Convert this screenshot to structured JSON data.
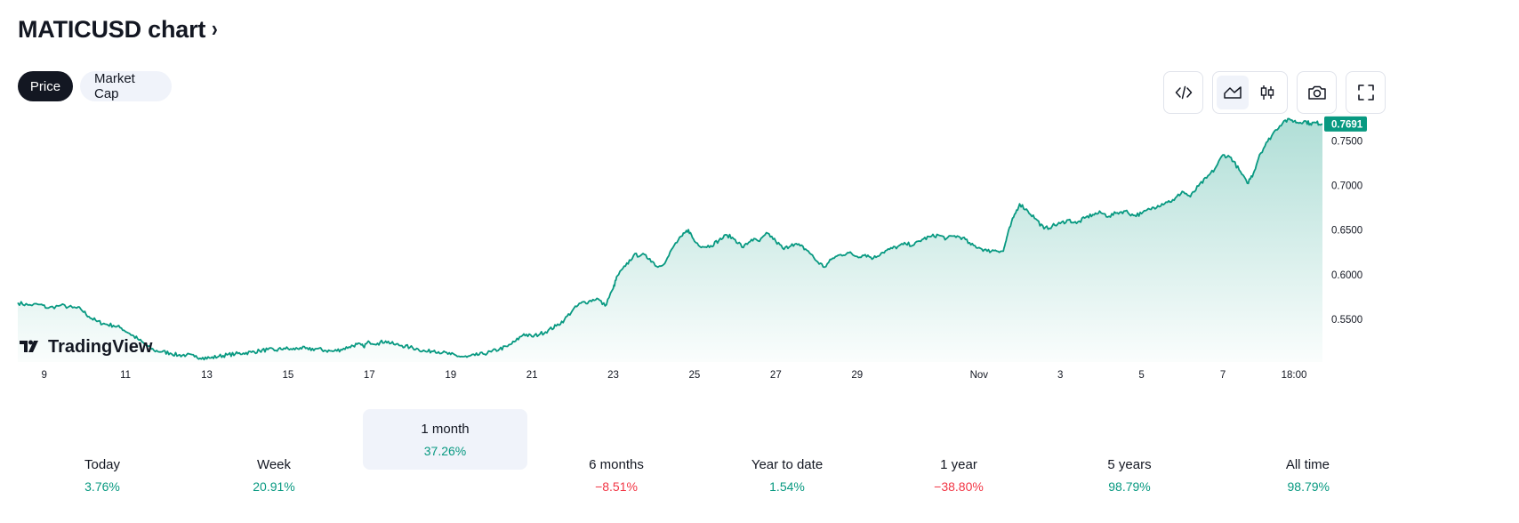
{
  "header": {
    "title": "MATICUSD chart",
    "title_chevron": "›"
  },
  "toggles": {
    "price": "Price",
    "market_cap": "Market Cap"
  },
  "toolbar": {
    "icons": [
      "embed-code-icon",
      "area-chart-icon",
      "candles-icon",
      "camera-icon",
      "fullscreen-icon"
    ],
    "active_style": "area"
  },
  "colors": {
    "line": "#089981",
    "positive": "#089981",
    "negative": "#f23645",
    "dark": "#131722"
  },
  "logo": {
    "text": "TradingView"
  },
  "chart_data": {
    "type": "area",
    "title": "MATICUSD",
    "ylim": [
      0.502,
      0.7785
    ],
    "y_ticks": [
      0.55,
      0.6,
      0.65,
      0.7,
      0.75
    ],
    "y_tick_labels": [
      "0.5500",
      "0.6000",
      "0.6500",
      "0.7000",
      "0.7500"
    ],
    "last_value_label": "0.7691",
    "x_ticks": [
      {
        "day": 9,
        "label": "9"
      },
      {
        "day": 11,
        "label": "11"
      },
      {
        "day": 13,
        "label": "13"
      },
      {
        "day": 15,
        "label": "15"
      },
      {
        "day": 17,
        "label": "17"
      },
      {
        "day": 19,
        "label": "19"
      },
      {
        "day": 21,
        "label": "21"
      },
      {
        "day": 23,
        "label": "23"
      },
      {
        "day": 25,
        "label": "25"
      },
      {
        "day": 27,
        "label": "27"
      },
      {
        "day": 29,
        "label": "29"
      },
      {
        "day": 32,
        "label": "Nov"
      },
      {
        "day": 34,
        "label": "3"
      },
      {
        "day": 36,
        "label": "5"
      },
      {
        "day": 38,
        "label": "7"
      },
      {
        "day": 39.75,
        "label": "18:00"
      }
    ],
    "x_unit": "days since Oct 0 (Nov 1 = 32)",
    "xlim": [
      8.35,
      40.45
    ],
    "points": [
      [
        8.35,
        0.5685
      ],
      [
        8.6,
        0.566
      ],
      [
        8.9,
        0.5665
      ],
      [
        9.1,
        0.5625
      ],
      [
        9.4,
        0.5655
      ],
      [
        9.7,
        0.563
      ],
      [
        9.9,
        0.5615
      ],
      [
        10.1,
        0.553
      ],
      [
        10.3,
        0.5475
      ],
      [
        10.5,
        0.5445
      ],
      [
        10.7,
        0.543
      ],
      [
        10.9,
        0.54
      ],
      [
        11.1,
        0.534
      ],
      [
        11.3,
        0.528
      ],
      [
        11.5,
        0.521
      ],
      [
        11.7,
        0.515
      ],
      [
        11.9,
        0.5135
      ],
      [
        12.1,
        0.512
      ],
      [
        12.3,
        0.5095
      ],
      [
        12.5,
        0.51
      ],
      [
        12.7,
        0.508
      ],
      [
        12.9,
        0.507
      ],
      [
        13.1,
        0.5065
      ],
      [
        13.3,
        0.5085
      ],
      [
        13.5,
        0.51
      ],
      [
        13.7,
        0.511
      ],
      [
        13.9,
        0.512
      ],
      [
        14.1,
        0.513
      ],
      [
        14.3,
        0.5145
      ],
      [
        14.5,
        0.516
      ],
      [
        14.7,
        0.515
      ],
      [
        14.9,
        0.5175
      ],
      [
        15.1,
        0.516
      ],
      [
        15.3,
        0.518
      ],
      [
        15.5,
        0.516
      ],
      [
        15.7,
        0.517
      ],
      [
        15.9,
        0.515
      ],
      [
        16.1,
        0.514
      ],
      [
        16.3,
        0.516
      ],
      [
        16.5,
        0.519
      ],
      [
        16.7,
        0.522
      ],
      [
        16.85,
        0.5195
      ],
      [
        17.0,
        0.5245
      ],
      [
        17.2,
        0.523
      ],
      [
        17.4,
        0.5255
      ],
      [
        17.6,
        0.522
      ],
      [
        17.8,
        0.5205
      ],
      [
        18.0,
        0.5185
      ],
      [
        18.2,
        0.5165
      ],
      [
        18.4,
        0.5135
      ],
      [
        18.6,
        0.515
      ],
      [
        18.8,
        0.5125
      ],
      [
        19.0,
        0.5105
      ],
      [
        19.2,
        0.5085
      ],
      [
        19.4,
        0.5075
      ],
      [
        19.6,
        0.5095
      ],
      [
        19.8,
        0.511
      ],
      [
        20.0,
        0.5135
      ],
      [
        20.2,
        0.5165
      ],
      [
        20.4,
        0.5195
      ],
      [
        20.6,
        0.5255
      ],
      [
        20.8,
        0.5335
      ],
      [
        21.0,
        0.5305
      ],
      [
        21.2,
        0.5335
      ],
      [
        21.4,
        0.5375
      ],
      [
        21.6,
        0.5425
      ],
      [
        21.8,
        0.5495
      ],
      [
        22.0,
        0.56
      ],
      [
        22.2,
        0.568
      ],
      [
        22.4,
        0.57
      ],
      [
        22.6,
        0.5735
      ],
      [
        22.8,
        0.565
      ],
      [
        23.0,
        0.5845
      ],
      [
        23.1,
        0.5985
      ],
      [
        23.3,
        0.6095
      ],
      [
        23.5,
        0.6215
      ],
      [
        23.7,
        0.6225
      ],
      [
        23.9,
        0.618
      ],
      [
        24.1,
        0.6085
      ],
      [
        24.3,
        0.6155
      ],
      [
        24.5,
        0.633
      ],
      [
        24.7,
        0.6435
      ],
      [
        24.85,
        0.6505
      ],
      [
        25.0,
        0.6375
      ],
      [
        25.2,
        0.6315
      ],
      [
        25.4,
        0.6325
      ],
      [
        25.6,
        0.6385
      ],
      [
        25.8,
        0.6445
      ],
      [
        26.0,
        0.6395
      ],
      [
        26.2,
        0.6305
      ],
      [
        26.4,
        0.6395
      ],
      [
        26.6,
        0.6375
      ],
      [
        26.8,
        0.6465
      ],
      [
        27.0,
        0.6375
      ],
      [
        27.2,
        0.6285
      ],
      [
        27.4,
        0.6345
      ],
      [
        27.6,
        0.6325
      ],
      [
        27.8,
        0.6265
      ],
      [
        28.0,
        0.6155
      ],
      [
        28.2,
        0.6085
      ],
      [
        28.4,
        0.6185
      ],
      [
        28.6,
        0.6225
      ],
      [
        28.8,
        0.6245
      ],
      [
        29.0,
        0.6205
      ],
      [
        29.2,
        0.6225
      ],
      [
        29.4,
        0.6185
      ],
      [
        29.6,
        0.6245
      ],
      [
        29.8,
        0.6285
      ],
      [
        30.0,
        0.6315
      ],
      [
        30.2,
        0.6345
      ],
      [
        30.4,
        0.6335
      ],
      [
        30.6,
        0.6395
      ],
      [
        30.8,
        0.6425
      ],
      [
        31.0,
        0.6445
      ],
      [
        31.2,
        0.6405
      ],
      [
        31.4,
        0.6435
      ],
      [
        31.6,
        0.6415
      ],
      [
        31.8,
        0.6335
      ],
      [
        32.0,
        0.6305
      ],
      [
        32.2,
        0.6265
      ],
      [
        32.4,
        0.6275
      ],
      [
        32.6,
        0.6265
      ],
      [
        32.7,
        0.6445
      ],
      [
        32.85,
        0.6645
      ],
      [
        33.0,
        0.6795
      ],
      [
        33.2,
        0.6715
      ],
      [
        33.4,
        0.6625
      ],
      [
        33.6,
        0.6515
      ],
      [
        33.8,
        0.6545
      ],
      [
        34.0,
        0.6575
      ],
      [
        34.2,
        0.6615
      ],
      [
        34.4,
        0.6575
      ],
      [
        34.6,
        0.6635
      ],
      [
        34.8,
        0.6675
      ],
      [
        35.0,
        0.6695
      ],
      [
        35.2,
        0.6655
      ],
      [
        35.4,
        0.6695
      ],
      [
        35.6,
        0.6715
      ],
      [
        35.8,
        0.6665
      ],
      [
        36.0,
        0.6685
      ],
      [
        36.2,
        0.6735
      ],
      [
        36.4,
        0.6775
      ],
      [
        36.6,
        0.6815
      ],
      [
        36.8,
        0.6835
      ],
      [
        37.0,
        0.6935
      ],
      [
        37.2,
        0.6875
      ],
      [
        37.4,
        0.6995
      ],
      [
        37.6,
        0.7085
      ],
      [
        37.8,
        0.7185
      ],
      [
        38.0,
        0.7345
      ],
      [
        38.2,
        0.7315
      ],
      [
        38.4,
        0.7175
      ],
      [
        38.6,
        0.7025
      ],
      [
        38.75,
        0.7135
      ],
      [
        38.9,
        0.7345
      ],
      [
        39.1,
        0.7495
      ],
      [
        39.3,
        0.7625
      ],
      [
        39.5,
        0.7725
      ],
      [
        39.7,
        0.7735
      ],
      [
        39.85,
        0.7705
      ],
      [
        40.0,
        0.7725
      ],
      [
        40.15,
        0.7695
      ],
      [
        40.3,
        0.7705
      ],
      [
        40.45,
        0.7691
      ]
    ]
  },
  "periods": [
    {
      "label": "Today",
      "value": "3.76%",
      "trend": "up"
    },
    {
      "label": "Week",
      "value": "20.91%",
      "trend": "up"
    },
    {
      "label": "1 month",
      "value": "37.26%",
      "trend": "up",
      "active": true
    },
    {
      "label": "6 months",
      "value": "−8.51%",
      "trend": "down"
    },
    {
      "label": "Year to date",
      "value": "1.54%",
      "trend": "up"
    },
    {
      "label": "1 year",
      "value": "−38.80%",
      "trend": "down"
    },
    {
      "label": "5 years",
      "value": "98.79%",
      "trend": "up"
    },
    {
      "label": "All time",
      "value": "98.79%",
      "trend": "up"
    }
  ]
}
